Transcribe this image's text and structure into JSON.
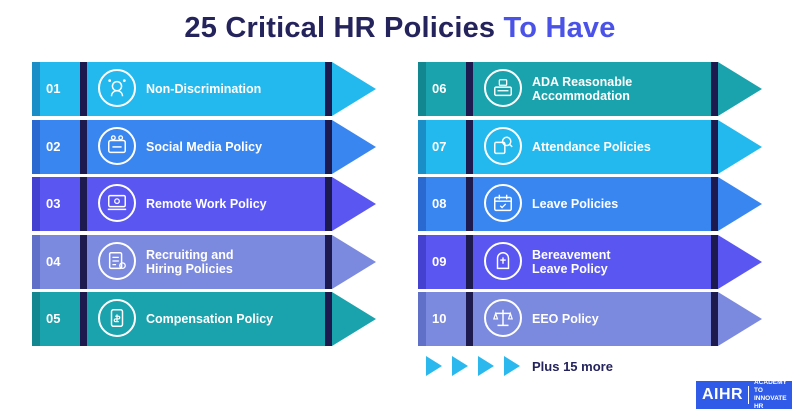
{
  "title": {
    "part1": "25 Critical HR Policies",
    "part2": "To Have"
  },
  "left_column": [
    {
      "num": "01",
      "label": "Non-Discrimination",
      "icon": "head-network-icon",
      "band": "#23b9ee",
      "dark": "#1a8fc7",
      "arrow": "#23b9ee"
    },
    {
      "num": "02",
      "label": "Social Media Policy",
      "icon": "social-media-icon",
      "band": "#3a86f0",
      "dark": "#2a6ad0",
      "arrow": "#3a86f0"
    },
    {
      "num": "03",
      "label": "Remote Work Policy",
      "icon": "remote-work-icon",
      "band": "#5a56f2",
      "dark": "#4440d0",
      "arrow": "#5a56f2"
    },
    {
      "num": "04",
      "label": "Recruiting and\nHiring Policies",
      "icon": "recruiting-icon",
      "band": "#7b8adf",
      "dark": "#6070c8",
      "arrow": "#7b8adf"
    },
    {
      "num": "05",
      "label": "Compensation Policy",
      "icon": "compensation-icon",
      "band": "#1aa3ad",
      "dark": "#138790",
      "arrow": "#1aa3ad"
    }
  ],
  "right_column": [
    {
      "num": "06",
      "label": "ADA Reasonable\nAccommodation",
      "icon": "accommodation-icon",
      "band": "#1aa3ad",
      "dark": "#138790",
      "arrow": "#1aa3ad"
    },
    {
      "num": "07",
      "label": "Attendance Policies",
      "icon": "attendance-icon",
      "band": "#23b9ee",
      "dark": "#1a8fc7",
      "arrow": "#23b9ee"
    },
    {
      "num": "08",
      "label": "Leave Policies",
      "icon": "calendar-leave-icon",
      "band": "#3a86f0",
      "dark": "#2a6ad0",
      "arrow": "#3a86f0"
    },
    {
      "num": "09",
      "label": "Bereavement\nLeave Policy",
      "icon": "bereavement-icon",
      "band": "#5a56f2",
      "dark": "#4440d0",
      "arrow": "#5a56f2"
    },
    {
      "num": "10",
      "label": "EEO Policy",
      "icon": "scales-icon",
      "band": "#7b8adf",
      "dark": "#6070c8",
      "arrow": "#7b8adf"
    }
  ],
  "more": {
    "label": "Plus 15 more",
    "color": "#2bb8ee"
  },
  "logo": {
    "main": "AIHR",
    "sub_line1": "ACADEMY TO",
    "sub_line2": "INNOVATE HR"
  }
}
